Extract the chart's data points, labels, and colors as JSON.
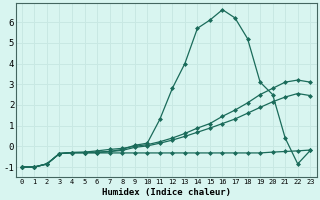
{
  "xlabel": "Humidex (Indice chaleur)",
  "background_color": "#d8f5f0",
  "grid_color": "#c8e8e3",
  "line_color": "#1a6b5a",
  "x_ticks": [
    0,
    1,
    2,
    3,
    4,
    5,
    6,
    7,
    8,
    9,
    10,
    11,
    12,
    13,
    14,
    15,
    16,
    17,
    18,
    19,
    20,
    21,
    22,
    23
  ],
  "y_ticks": [
    -1,
    0,
    1,
    2,
    3,
    4,
    5,
    6
  ],
  "xlim": [
    -0.5,
    23.5
  ],
  "ylim": [
    -1.5,
    6.9
  ],
  "lines": [
    {
      "x": [
        0,
        1,
        2,
        3,
        4,
        5,
        6,
        7,
        8,
        9,
        10,
        11,
        12,
        13,
        14,
        15,
        16,
        17,
        18,
        19,
        20,
        21,
        22,
        23
      ],
      "y": [
        -1.0,
        -1.0,
        -0.85,
        -0.35,
        -0.3,
        -0.3,
        -0.3,
        -0.25,
        -0.15,
        0.05,
        0.15,
        1.3,
        2.8,
        4.0,
        5.7,
        6.1,
        6.6,
        6.2,
        5.2,
        3.1,
        2.5,
        0.4,
        -0.85,
        -0.2
      ]
    },
    {
      "x": [
        0,
        1,
        2,
        3,
        4,
        5,
        6,
        7,
        8,
        9,
        10,
        11,
        12,
        13,
        14,
        15,
        16,
        17,
        18,
        19,
        20,
        21,
        22,
        23
      ],
      "y": [
        -1.0,
        -1.0,
        -0.85,
        -0.35,
        -0.3,
        -0.28,
        -0.22,
        -0.15,
        -0.1,
        0.0,
        0.08,
        0.22,
        0.4,
        0.62,
        0.88,
        1.1,
        1.45,
        1.75,
        2.1,
        2.5,
        2.8,
        3.1,
        3.2,
        3.1
      ]
    },
    {
      "x": [
        0,
        1,
        2,
        3,
        4,
        5,
        6,
        7,
        8,
        9,
        10,
        11,
        12,
        13,
        14,
        15,
        16,
        17,
        18,
        19,
        20,
        21,
        22,
        23
      ],
      "y": [
        -1.0,
        -1.0,
        -0.85,
        -0.35,
        -0.3,
        -0.3,
        -0.28,
        -0.25,
        -0.2,
        -0.05,
        0.02,
        0.15,
        0.3,
        0.48,
        0.68,
        0.88,
        1.1,
        1.32,
        1.6,
        1.88,
        2.15,
        2.38,
        2.55,
        2.45
      ]
    },
    {
      "x": [
        0,
        1,
        2,
        3,
        4,
        5,
        6,
        7,
        8,
        9,
        10,
        11,
        12,
        13,
        14,
        15,
        16,
        17,
        18,
        19,
        20,
        21,
        22,
        23
      ],
      "y": [
        -1.0,
        -1.0,
        -0.85,
        -0.35,
        -0.32,
        -0.32,
        -0.32,
        -0.32,
        -0.32,
        -0.32,
        -0.32,
        -0.32,
        -0.32,
        -0.32,
        -0.32,
        -0.32,
        -0.32,
        -0.32,
        -0.32,
        -0.32,
        -0.28,
        -0.25,
        -0.22,
        -0.18
      ]
    }
  ]
}
